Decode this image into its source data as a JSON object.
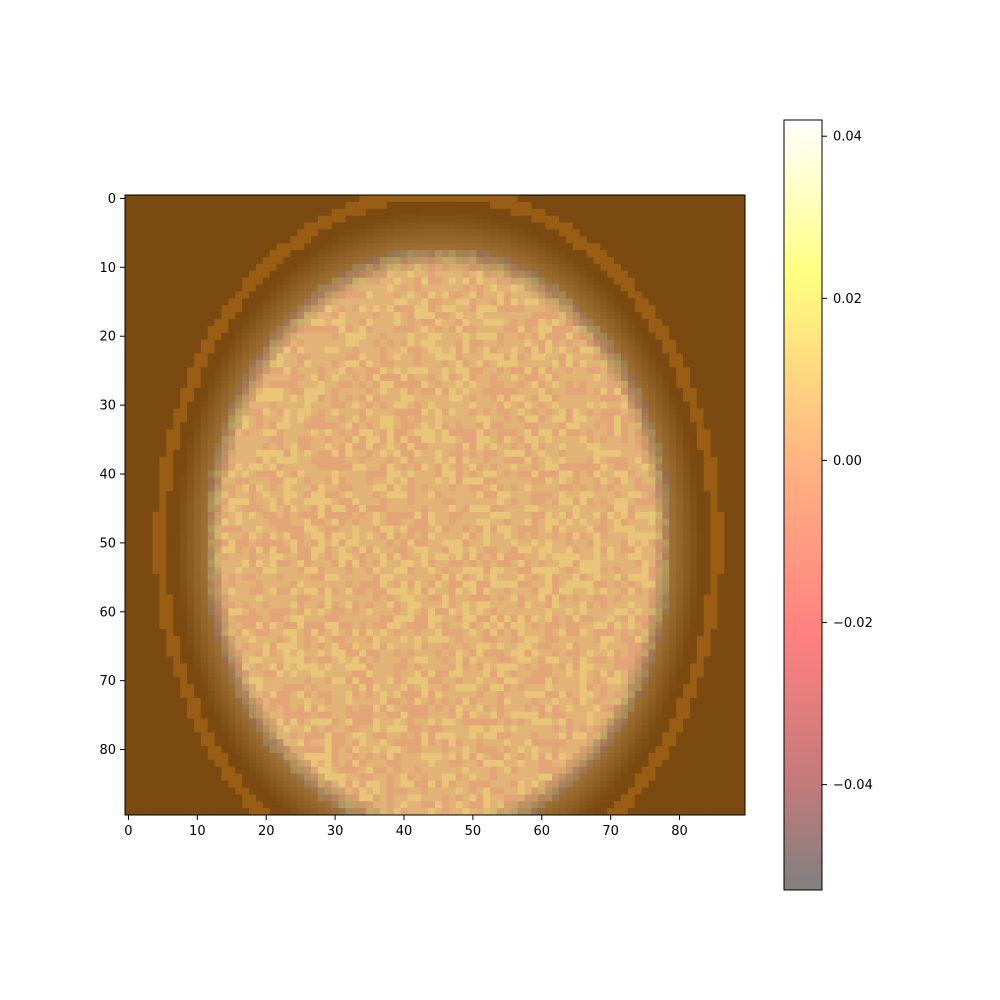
{
  "chart_data": {
    "type": "heatmap",
    "title": "",
    "xlabel": "",
    "ylabel": "",
    "grid": false,
    "image": {
      "description_of_content": "axial brain MRI slice overlaid with noisy activation map",
      "rows": 90,
      "cols": 90,
      "xlim": [
        -0.5,
        89.5
      ],
      "ylim": [
        89.5,
        -0.5
      ],
      "x_ticks": [
        0,
        10,
        20,
        30,
        40,
        50,
        60,
        70,
        80
      ],
      "y_ticks": [
        0,
        10,
        20,
        30,
        40,
        50,
        60,
        70,
        80
      ],
      "x_tick_labels": [
        "0",
        "10",
        "20",
        "30",
        "40",
        "50",
        "60",
        "70",
        "80"
      ],
      "y_tick_labels": [
        "0",
        "10",
        "20",
        "30",
        "40",
        "50",
        "60",
        "70",
        "80"
      ],
      "brain_center": [
        50,
        45
      ],
      "brain_radii": [
        43,
        34
      ],
      "background_color": "#7a4a10",
      "brain_base_color": "#e2b376"
    },
    "colorbar": {
      "min": -0.053,
      "max": 0.042,
      "ticks": [
        0.04,
        0.02,
        0.0,
        -0.02,
        -0.04
      ],
      "tick_labels": [
        "0.04",
        "0.02",
        "0.00",
        "−0.02",
        "−0.04"
      ],
      "colormap": "hot (reversed, alpha 0.5)",
      "colors": [
        "#808080",
        "#c87e7e",
        "#ff8080",
        "#ffae80",
        "#ffd080",
        "#ffff80",
        "#ffffc0",
        "#ffffff"
      ]
    }
  }
}
